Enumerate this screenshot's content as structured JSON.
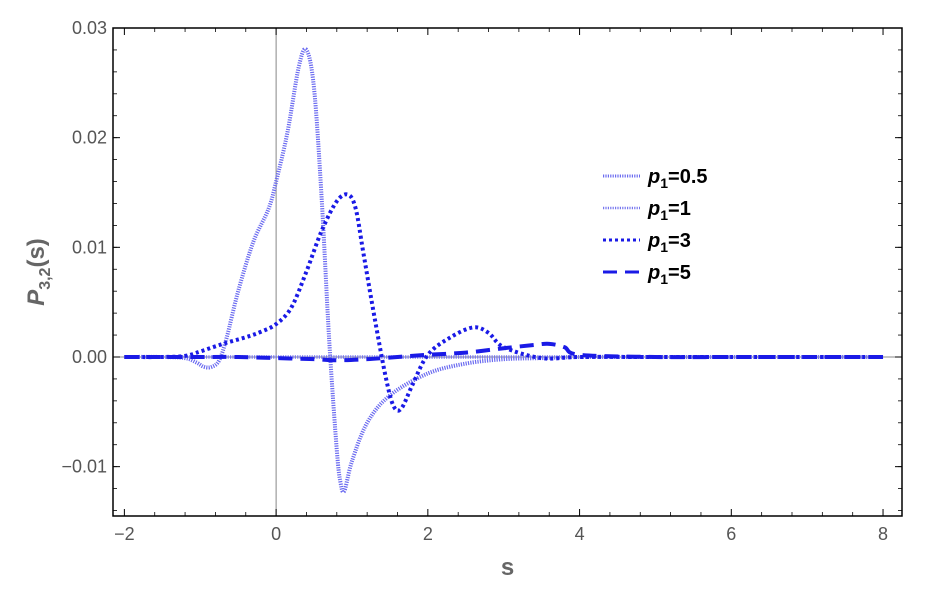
{
  "chart_data": {
    "type": "line",
    "xlabel": "s",
    "ylabel": {
      "main": "P",
      "sub": "3,2",
      "tail": "(s)"
    },
    "xlim": [
      -2.15,
      8.25
    ],
    "ylim": [
      -0.0145,
      0.03
    ],
    "x_ticks": [
      -2,
      0,
      2,
      4,
      6,
      8
    ],
    "x_tick_labels": [
      "−2",
      "0",
      "2",
      "4",
      "6",
      "8"
    ],
    "y_ticks": [
      -0.01,
      0.0,
      0.01,
      0.02,
      0.03
    ],
    "y_tick_labels": [
      "−0.01",
      "0.00",
      "0.01",
      "0.02",
      "0.03"
    ],
    "grid": false,
    "legend_position": "right",
    "colors": {
      "series_0": "#6b6bf0",
      "series_1": "#7777ee",
      "series_2": "#1a1ae6",
      "series_3": "#1a1ae6",
      "frame": "#000000",
      "zero_line": "#888888"
    },
    "series": [
      {
        "name": "p1=0.5",
        "legend": {
          "main": "p",
          "sub": "1",
          "tail": "=0.5"
        },
        "style": "dense-dotted",
        "x": [
          -2.0,
          -1.5,
          -1.2,
          -1.05,
          -0.95,
          -0.85,
          -0.75,
          -0.65,
          -0.5,
          -0.3,
          -0.1,
          0.0,
          0.15,
          0.3,
          0.4,
          0.5,
          0.6,
          0.7,
          0.8,
          0.85,
          0.9,
          1.0,
          1.2,
          1.5,
          2.0,
          2.5,
          3.0,
          3.5,
          4.0,
          5.0,
          6.0,
          7.0,
          8.0
        ],
        "y": [
          0.0,
          0.0,
          -0.0001,
          -0.0005,
          -0.0009,
          -0.0009,
          -0.0003,
          0.0018,
          0.006,
          0.0105,
          0.0135,
          0.016,
          0.0205,
          0.0265,
          0.028,
          0.0245,
          0.0145,
          0.0015,
          -0.0085,
          -0.0115,
          -0.0122,
          -0.0095,
          -0.006,
          -0.0035,
          -0.0015,
          -0.0006,
          -0.0002,
          -0.0001,
          0.0,
          0.0,
          0.0,
          0.0,
          0.0
        ]
      },
      {
        "name": "p1=1",
        "legend": {
          "main": "p",
          "sub": "1",
          "tail": "=1"
        },
        "style": "dense-dotted-light",
        "x": [
          -2.0,
          -1.5,
          -1.2,
          -1.0,
          -0.8,
          -0.6,
          -0.4,
          -0.2,
          0.0,
          0.2,
          0.4,
          0.6,
          0.8,
          0.95,
          1.05,
          1.15,
          1.3,
          1.45,
          1.55,
          1.65,
          1.8,
          2.0,
          2.3,
          2.6,
          3.0,
          3.5,
          4.0,
          5.0,
          6.0,
          7.0,
          8.0
        ],
        "y": [
          0.0,
          0.0,
          0.0,
          0.0,
          0.0,
          0.0,
          0.0,
          0.0,
          0.0,
          0.0,
          0.0,
          0.0,
          0.0,
          0.0,
          0.0,
          0.0,
          0.0,
          0.0,
          0.0,
          0.0,
          0.0,
          0.0,
          0.0,
          0.0,
          0.0,
          0.0,
          0.0,
          0.0,
          0.0,
          0.0,
          0.0
        ]
      },
      {
        "name": "p1=3",
        "legend": {
          "main": "p",
          "sub": "1",
          "tail": "=3"
        },
        "style": "dotted",
        "x": [
          -2.0,
          -1.5,
          -1.2,
          -1.0,
          -0.7,
          -0.4,
          -0.2,
          0.0,
          0.2,
          0.4,
          0.6,
          0.8,
          0.95,
          1.05,
          1.15,
          1.3,
          1.45,
          1.55,
          1.65,
          1.8,
          2.0,
          2.3,
          2.6,
          2.8,
          3.0,
          3.5,
          4.0,
          5.0,
          6.0,
          7.0,
          8.0
        ],
        "y": [
          0.0,
          0.0,
          0.0001,
          0.0005,
          0.0012,
          0.0018,
          0.0023,
          0.003,
          0.0045,
          0.0078,
          0.0115,
          0.0142,
          0.0148,
          0.0135,
          0.0095,
          0.0035,
          -0.002,
          -0.0045,
          -0.0047,
          -0.0025,
          0.0002,
          0.0018,
          0.0027,
          0.0022,
          0.0009,
          -0.0001,
          0.0,
          0.0,
          0.0,
          0.0,
          0.0
        ]
      },
      {
        "name": "p1=5",
        "legend": {
          "main": "p",
          "sub": "1",
          "tail": "=5"
        },
        "style": "dashed",
        "x": [
          -2.0,
          -1.0,
          -0.5,
          0.0,
          0.5,
          0.8,
          1.2,
          1.6,
          2.0,
          2.5,
          3.0,
          3.4,
          3.6,
          3.8,
          4.0,
          5.0,
          6.0,
          7.0,
          8.0
        ],
        "y": [
          0.0,
          0.0,
          0.0,
          -0.0001,
          -0.0002,
          -0.0003,
          -0.0002,
          0.0,
          0.0002,
          0.0004,
          0.0008,
          0.0011,
          0.0012,
          0.0009,
          0.0002,
          0.0,
          0.0,
          0.0,
          0.0
        ]
      }
    ]
  }
}
